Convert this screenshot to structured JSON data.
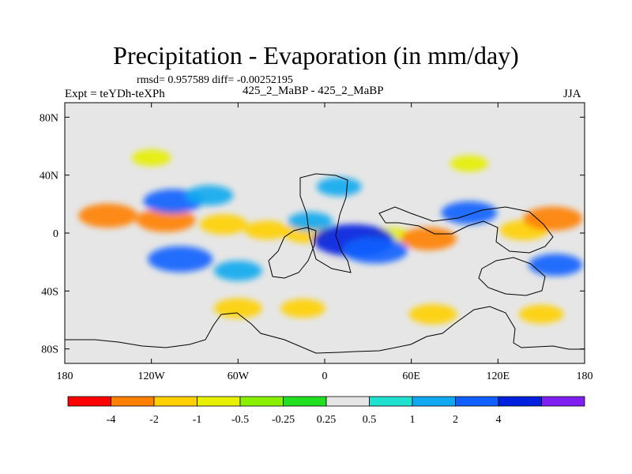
{
  "chart_data": {
    "type": "heatmap",
    "title": "Precipitation - Evaporation (in mm/day)",
    "stats_text": "rmsd= 0.957589 diff= -0.00252195",
    "left_string": "Expt = teYDh-teXPh",
    "center_string": "425_2_MaBP - 425_2_MaBP",
    "right_string": "JJA",
    "x_axis": {
      "range": [
        -180,
        180
      ],
      "ticks": [
        {
          "value": -180,
          "label": "180"
        },
        {
          "value": -120,
          "label": "120W"
        },
        {
          "value": -60,
          "label": "60W"
        },
        {
          "value": 0,
          "label": "0"
        },
        {
          "value": 60,
          "label": "60E"
        },
        {
          "value": 120,
          "label": "120E"
        },
        {
          "value": 180,
          "label": "180"
        }
      ]
    },
    "y_axis": {
      "range": [
        -90,
        90
      ],
      "ticks": [
        {
          "value": 80,
          "label": "80N"
        },
        {
          "value": 40,
          "label": "40N"
        },
        {
          "value": 0,
          "label": "0"
        },
        {
          "value": -40,
          "label": "40S"
        },
        {
          "value": -80,
          "label": "80S"
        }
      ]
    },
    "colorbar": {
      "levels": [
        {
          "value": -4,
          "label": "-4"
        },
        {
          "value": -2,
          "label": "-2"
        },
        {
          "value": -1,
          "label": "-1"
        },
        {
          "value": -0.5,
          "label": "-0.5"
        },
        {
          "value": -0.25,
          "label": "-0.25"
        },
        {
          "value": 0.25,
          "label": "0.25"
        },
        {
          "value": 0.5,
          "label": "0.5"
        },
        {
          "value": 1,
          "label": "1"
        },
        {
          "value": 2,
          "label": "2"
        },
        {
          "value": 4,
          "label": "4"
        }
      ],
      "colors": [
        "#ff0000",
        "#ff8000",
        "#ffd000",
        "#e6f000",
        "#88f000",
        "#20e020",
        "#e6e6e6",
        "#20e0d0",
        "#10a8f0",
        "#1060ff",
        "#0020e0",
        "#8020f0"
      ]
    },
    "regions": [
      {
        "lon": -150,
        "lat": 12,
        "value": -2.5
      },
      {
        "lon": -110,
        "lat": 9,
        "value": -2.5
      },
      {
        "lon": -70,
        "lat": 6,
        "value": -1.5
      },
      {
        "lon": -40,
        "lat": 2,
        "value": -1.2
      },
      {
        "lon": -12,
        "lat": 0,
        "value": -1.5
      },
      {
        "lon": 45,
        "lat": -2,
        "value": -0.8
      },
      {
        "lon": 72,
        "lat": -4,
        "value": -2.2
      },
      {
        "lon": 138,
        "lat": 2,
        "value": -1.5
      },
      {
        "lon": 158,
        "lat": 10,
        "value": -2.5
      },
      {
        "lon": -105,
        "lat": 22,
        "value": 2.5
      },
      {
        "lon": -80,
        "lat": 26,
        "value": 1.5
      },
      {
        "lon": -100,
        "lat": -18,
        "value": 3
      },
      {
        "lon": -60,
        "lat": -26,
        "value": 1.5
      },
      {
        "lon": -10,
        "lat": 8,
        "value": 1.2
      },
      {
        "lon": 20,
        "lat": -5,
        "value": 4.5
      },
      {
        "lon": 35,
        "lat": -12,
        "value": 3
      },
      {
        "lon": 100,
        "lat": 14,
        "value": 2.2
      },
      {
        "lon": 10,
        "lat": 32,
        "value": 1.2
      },
      {
        "lon": 160,
        "lat": -22,
        "value": 2
      },
      {
        "lon": -60,
        "lat": -52,
        "value": -1.5
      },
      {
        "lon": -15,
        "lat": -52,
        "value": -1.2
      },
      {
        "lon": 75,
        "lat": -56,
        "value": -1.5
      },
      {
        "lon": 150,
        "lat": -56,
        "value": -1.2
      },
      {
        "lon": -120,
        "lat": 52,
        "value": -0.7
      },
      {
        "lon": 100,
        "lat": 48,
        "value": -0.6
      }
    ]
  }
}
